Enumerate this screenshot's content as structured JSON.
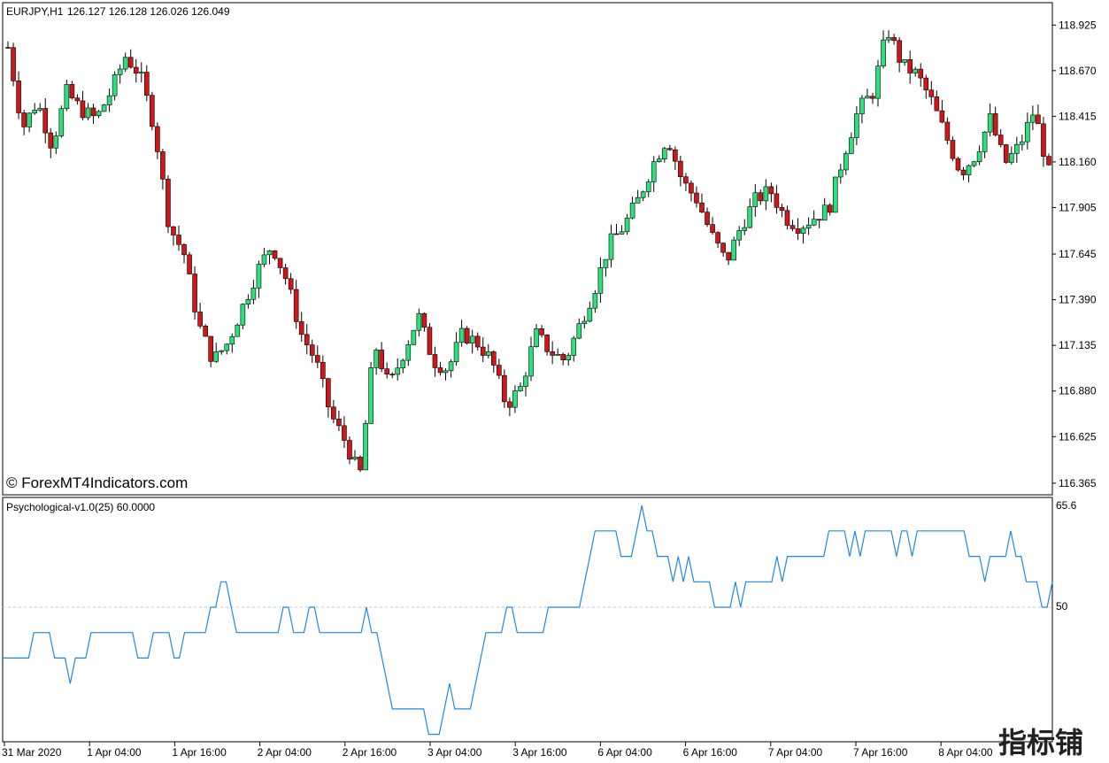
{
  "header": {
    "symbol": "EURJPY,H1",
    "ohlc": "126.127 126.128 126.026 126.049"
  },
  "watermark": "© ForexMT4Indicators.com",
  "stamp": "指标铺",
  "indicator": {
    "label": "Psychological-v1.0(25) 60.0000",
    "top_label": "65.6",
    "level_label": "50"
  },
  "colors": {
    "bull": "#2ee07a",
    "bear": "#d01616",
    "line": "#1e88e5",
    "level": "#c8c8c8"
  },
  "chart_data": [
    {
      "type": "candlestick",
      "symbol": "EURJPY",
      "timeframe": "H1",
      "ylim": [
        116.3,
        119.05
      ],
      "y_ticks": [
        "118.925",
        "118.670",
        "118.415",
        "118.160",
        "117.905",
        "117.645",
        "117.390",
        "117.135",
        "116.880",
        "116.625",
        "116.365"
      ],
      "x_ticks": [
        "31 Mar 2020",
        "1 Apr 04:00",
        "1 Apr 16:00",
        "2 Apr 04:00",
        "2 Apr 16:00",
        "3 Apr 04:00",
        "3 Apr 16:00",
        "6 Apr 04:00",
        "6 Apr 16:00",
        "7 Apr 04:00",
        "7 Apr 16:00",
        "8 Apr 04:00"
      ],
      "close_path": [
        118.8,
        118.35,
        118.5,
        118.25,
        118.55,
        118.45,
        118.4,
        118.55,
        118.75,
        118.65,
        118.35,
        117.8,
        117.65,
        117.25,
        117.05,
        117.15,
        117.35,
        117.55,
        117.7,
        117.5,
        117.2,
        117.05,
        116.75,
        116.6,
        116.4,
        117.15,
        116.9,
        117.1,
        117.3,
        117.05,
        117.0,
        117.2,
        117.15,
        117.05,
        116.8,
        116.9,
        117.2,
        117.1,
        117.05,
        117.25,
        117.45,
        117.7,
        117.8,
        117.95,
        118.15,
        118.3,
        118.05,
        117.95,
        117.75,
        117.6,
        117.8,
        117.95,
        118.0,
        117.85,
        117.8,
        117.85,
        117.9,
        118.2,
        118.45,
        118.55,
        118.9,
        118.7,
        118.65,
        118.5,
        118.3,
        118.1,
        118.2,
        118.4,
        118.15,
        118.25,
        118.45,
        118.1
      ]
    },
    {
      "type": "line",
      "name": "Psychological-v1.0(25)",
      "level": 50,
      "ylim": [
        30.5,
        65.6
      ],
      "values": [
        42,
        42,
        42,
        42,
        42,
        42,
        46,
        46,
        46,
        46,
        42,
        42,
        42,
        38,
        42,
        42,
        42,
        46,
        46,
        46,
        46,
        46,
        46,
        46,
        46,
        46,
        42,
        42,
        42,
        46,
        46,
        46,
        46,
        42,
        42,
        46,
        46,
        46,
        46,
        46,
        50,
        50,
        54,
        54,
        50,
        46,
        46,
        46,
        46,
        46,
        46,
        46,
        46,
        46,
        50,
        50,
        46,
        46,
        46,
        50,
        50,
        46,
        46,
        46,
        46,
        46,
        46,
        46,
        46,
        46,
        50,
        46,
        46,
        42,
        38,
        34,
        34,
        34,
        34,
        34,
        34,
        34,
        30,
        30,
        30,
        34,
        38,
        34,
        34,
        34,
        34,
        38,
        42,
        46,
        46,
        46,
        46,
        50,
        50,
        46,
        46,
        46,
        46,
        46,
        46,
        50,
        50,
        50,
        50,
        50,
        50,
        50,
        54,
        58,
        62,
        62,
        62,
        62,
        62,
        58,
        58,
        58,
        62,
        66,
        62,
        62,
        58,
        58,
        58,
        54,
        58,
        54,
        58,
        54,
        54,
        54,
        54,
        50,
        50,
        50,
        50,
        54,
        50,
        54,
        54,
        54,
        54,
        54,
        54,
        58,
        54,
        58,
        58,
        58,
        58,
        58,
        58,
        58,
        58,
        62,
        62,
        62,
        62,
        58,
        62,
        58,
        62,
        62,
        62,
        62,
        62,
        62,
        58,
        62,
        62,
        58,
        62,
        62,
        62,
        62,
        62,
        62,
        62,
        62,
        62,
        62,
        58,
        58,
        58,
        54,
        58,
        58,
        58,
        58,
        62,
        58,
        58,
        54,
        54,
        54,
        50,
        50,
        54
      ]
    }
  ]
}
